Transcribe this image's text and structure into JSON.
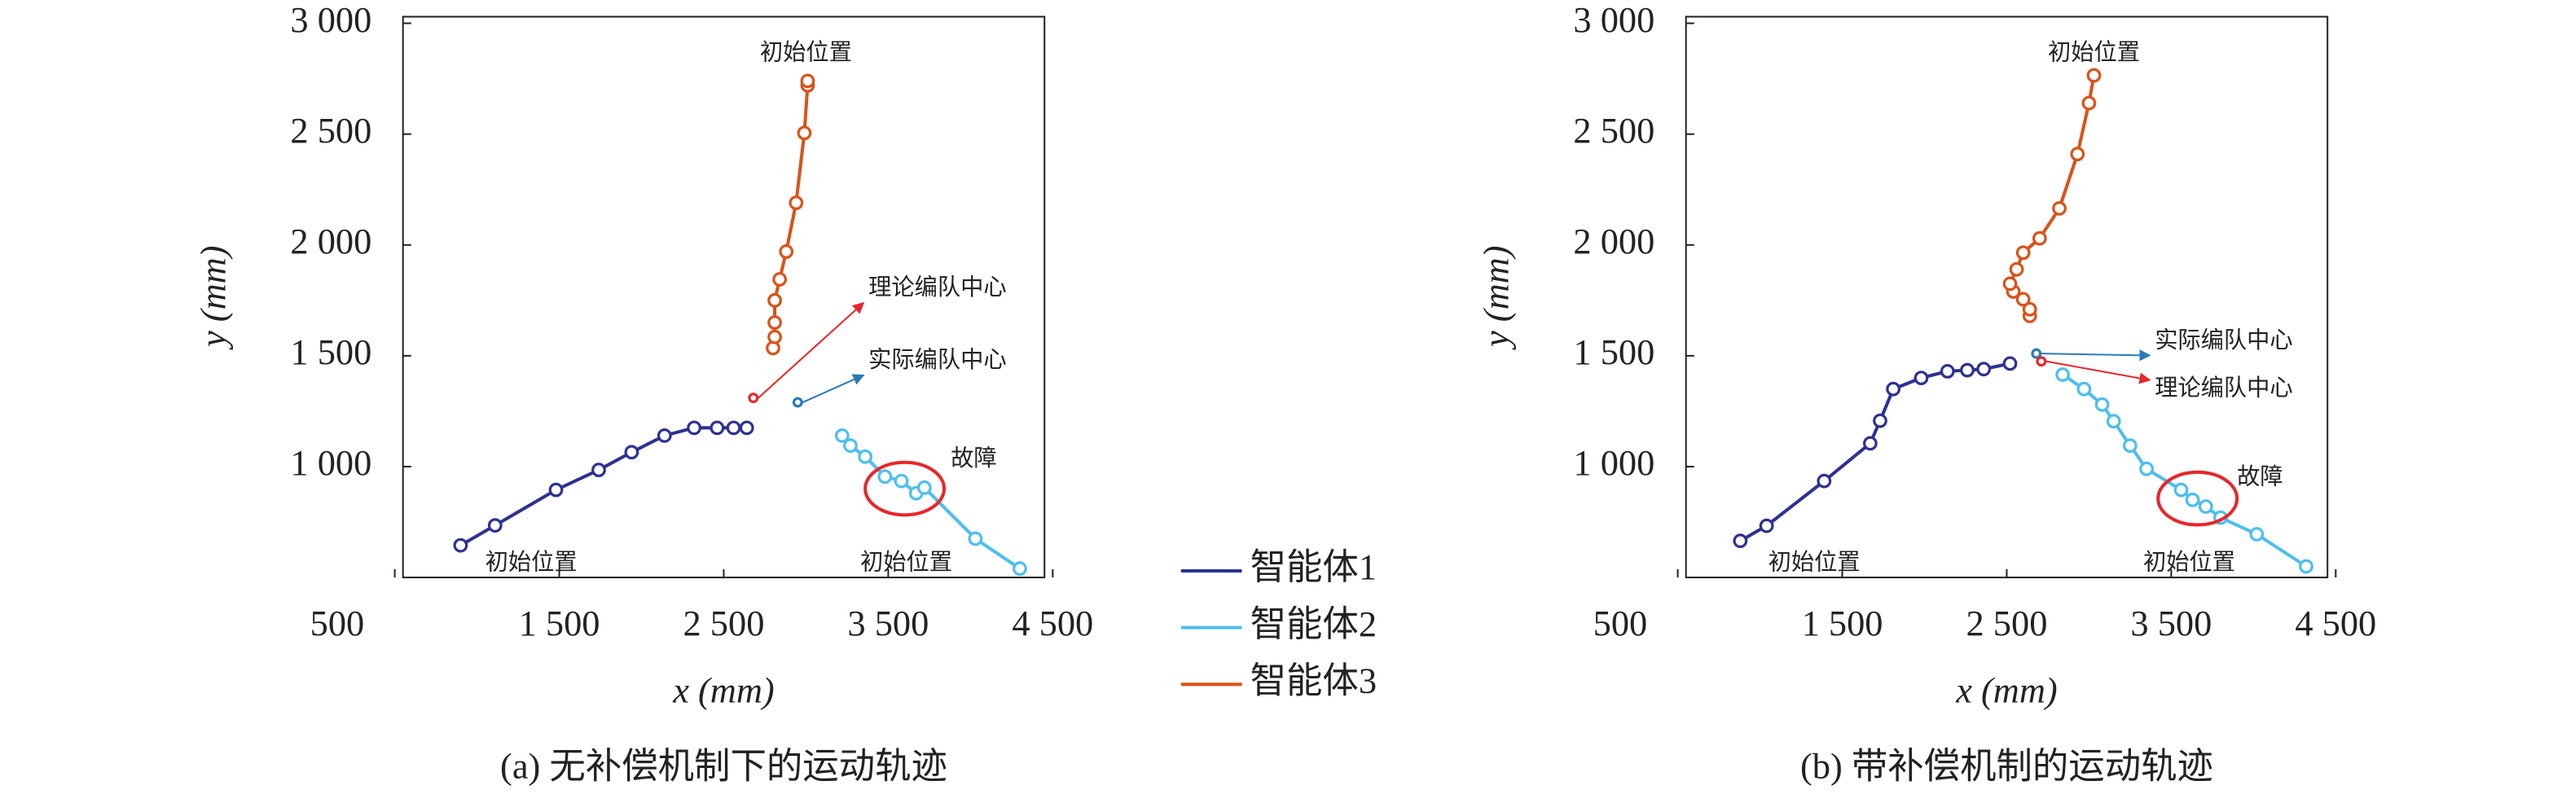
{
  "chart_data": [
    {
      "type": "line",
      "title": "(a) 无补偿机制下的运动轨迹",
      "xlabel": "x (mm)",
      "ylabel": "y (mm)",
      "xlim": [
        500,
        4500
      ],
      "ylim": [
        500,
        3000
      ],
      "xticks": [
        500,
        {
          "value": 1500,
          "label": "1 500"
        },
        {
          "value": 2500,
          "label": "2 500"
        },
        {
          "value": 3500,
          "label": "3 500"
        },
        {
          "value": 4500,
          "label": "4 500"
        }
      ],
      "yticks": [
        {
          "value": 1000,
          "label": "1 000"
        },
        {
          "value": 1500,
          "label": "1 500"
        },
        {
          "value": 2000,
          "label": "2 000"
        },
        {
          "value": 2500,
          "label": "2 500"
        },
        {
          "value": 3000,
          "label": "3 000"
        }
      ],
      "series": [
        {
          "name": "智能体1",
          "color": "#2e3192",
          "x": [
            900,
            1110,
            1480,
            1740,
            1940,
            2140,
            2320,
            2460,
            2560,
            2640
          ],
          "values": [
            645,
            735,
            895,
            985,
            1065,
            1140,
            1175,
            1175,
            1175,
            1175
          ]
        },
        {
          "name": "智能体2",
          "color": "#4dbeee",
          "x": [
            3220,
            3270,
            3360,
            3480,
            3580,
            3670,
            3720,
            4030,
            4300
          ],
          "values": [
            1140,
            1095,
            1045,
            955,
            935,
            880,
            905,
            675,
            540
          ]
        },
        {
          "name": "智能体3",
          "color": "#d95319",
          "x": [
            2800,
            2810,
            2810,
            2810,
            2840,
            2880,
            2940,
            2990,
            3010,
            3010
          ],
          "values": [
            1535,
            1585,
            1650,
            1750,
            1845,
            1970,
            2190,
            2505,
            2720,
            2740
          ]
        }
      ],
      "centers": [
        {
          "name": "理论编队中心",
          "color": "#e8262a",
          "x": 2680,
          "y": 1310
        },
        {
          "name": "实际编队中心",
          "color": "#2a7ab8",
          "x": 2950,
          "y": 1290
        }
      ],
      "annotations": [
        "初始位置",
        "初始位置",
        "初始位置",
        "故障"
      ]
    },
    {
      "type": "line",
      "title": "(b) 带补偿机制的运动轨迹",
      "xlabel": "x (mm)",
      "ylabel": "y (mm)",
      "xlim": [
        500,
        4500
      ],
      "ylim": [
        500,
        3000
      ],
      "xticks": [
        500,
        {
          "value": 1500,
          "label": "1 500"
        },
        {
          "value": 2500,
          "label": "2 500"
        },
        {
          "value": 3500,
          "label": "3 500"
        },
        {
          "value": 4500,
          "label": "4 500"
        }
      ],
      "yticks": [
        {
          "value": 1000,
          "label": "1 000"
        },
        {
          "value": 1500,
          "label": "1 500"
        },
        {
          "value": 2000,
          "label": "2 000"
        },
        {
          "value": 2500,
          "label": "2 500"
        },
        {
          "value": 3000,
          "label": "3 000"
        }
      ],
      "series": [
        {
          "color": "#2e3192",
          "x": [
            880,
            1040,
            1390,
            1670,
            1730,
            1810,
            1980,
            2140,
            2260,
            2360,
            2520
          ],
          "values": [
            665,
            733,
            935,
            1105,
            1207,
            1350,
            1400,
            1430,
            1435,
            1440,
            1465
          ]
        },
        {
          "color": "#4dbeee",
          "x": [
            2840,
            2970,
            3080,
            3150,
            3250,
            3350,
            3560,
            3630,
            3710,
            3800,
            4020,
            4320
          ],
          "values": [
            1415,
            1350,
            1280,
            1205,
            1095,
            990,
            895,
            850,
            820,
            770,
            695,
            550
          ]
        },
        {
          "color": "#d95319",
          "x": [
            2640,
            2640,
            2600,
            2540,
            2520,
            2560,
            2600,
            2700,
            2820,
            2930,
            3000,
            3030
          ],
          "values": [
            1680,
            1710,
            1755,
            1790,
            1825,
            1890,
            1965,
            2030,
            2165,
            2410,
            2640,
            2765
          ]
        }
      ],
      "centers": [
        {
          "name": "实际编队中心",
          "color": "#2a7ab8",
          "x": 2680,
          "y": 1510
        },
        {
          "name": "理论编队中心",
          "color": "#e8262a",
          "x": 2710,
          "y": 1475
        }
      ],
      "annotations": [
        "初始位置",
        "初始位置",
        "初始位置",
        "故障"
      ]
    }
  ]
}
